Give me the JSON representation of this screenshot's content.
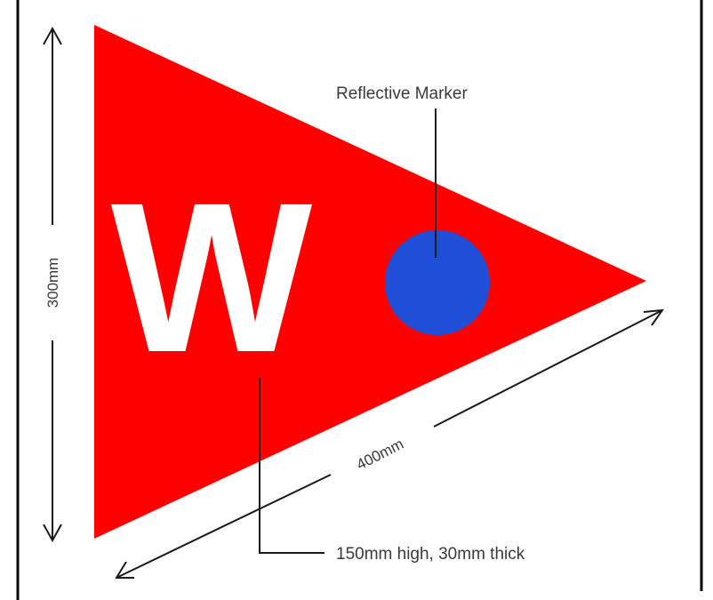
{
  "diagram": {
    "letter": "W",
    "callouts": {
      "marker": "Reflective Marker",
      "letter_spec": "150mm high, 30mm thick"
    },
    "dimensions": {
      "height": "300mm",
      "length": "400mm"
    },
    "colors": {
      "flag": "#ff0000",
      "letter": "#ffffff",
      "marker": "#1e4fd6",
      "lines": "#1a1a1a",
      "frame": "#000000"
    }
  }
}
